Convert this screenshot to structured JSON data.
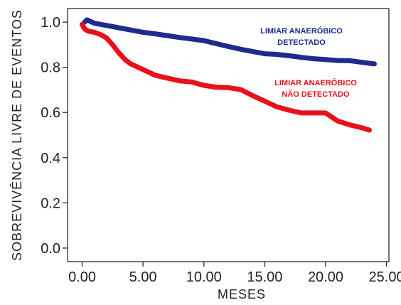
{
  "chart_data": {
    "type": "line",
    "xlabel": "MESES",
    "ylabel": "SOBREVIVÊNCIA  LIVRE  DE  EVENTOS",
    "xlim": [
      -1.2,
      25.2
    ],
    "ylim": [
      -0.06,
      1.06
    ],
    "x_ticks": [
      0,
      5,
      10,
      15,
      20,
      25
    ],
    "x_tick_labels": [
      "0.00",
      "5.00",
      "10.00",
      "15.00",
      "20.00",
      "25.00"
    ],
    "y_ticks": [
      0.0,
      0.2,
      0.4,
      0.6,
      0.8,
      1.0
    ],
    "y_tick_labels": [
      "0.0",
      "0.2",
      "0.4",
      "0.6",
      "0.8",
      "1.0"
    ],
    "grid": false,
    "series": [
      {
        "color": "#1f2a8c",
        "x": [
          0.2,
          0.4,
          1,
          2,
          3,
          4,
          5,
          6,
          7,
          8,
          9,
          10,
          11,
          12,
          13,
          14,
          15,
          16,
          17,
          18,
          19,
          20,
          21,
          22,
          23,
          24
        ],
        "y": [
          1.0,
          1.01,
          0.995,
          0.985,
          0.975,
          0.965,
          0.955,
          0.948,
          0.94,
          0.932,
          0.925,
          0.918,
          0.905,
          0.892,
          0.88,
          0.87,
          0.86,
          0.857,
          0.851,
          0.844,
          0.838,
          0.834,
          0.83,
          0.829,
          0.822,
          0.815
        ]
      },
      {
        "color": "#e8101a",
        "x": [
          0,
          0.2,
          0.5,
          1,
          1.5,
          2,
          2.5,
          3,
          3.5,
          4,
          5,
          6,
          7,
          8,
          9,
          10,
          11,
          12,
          13,
          14,
          15,
          16,
          17,
          18,
          19,
          20,
          21,
          22,
          23,
          23.6
        ],
        "y": [
          0.99,
          0.97,
          0.96,
          0.955,
          0.945,
          0.93,
          0.9,
          0.865,
          0.835,
          0.815,
          0.79,
          0.765,
          0.752,
          0.74,
          0.735,
          0.72,
          0.712,
          0.71,
          0.702,
          0.675,
          0.65,
          0.625,
          0.61,
          0.598,
          0.598,
          0.598,
          0.562,
          0.545,
          0.532,
          0.522
        ]
      }
    ],
    "annotations": [
      {
        "lines": [
          "LIMIAR ANAERÓBICO",
          "DETECTADO"
        ],
        "color": "#1f2a8c"
      },
      {
        "lines": [
          "LIMIAR ANAERÓBICO",
          "NÃO DETECTADO"
        ],
        "color": "#e8101a"
      }
    ]
  }
}
